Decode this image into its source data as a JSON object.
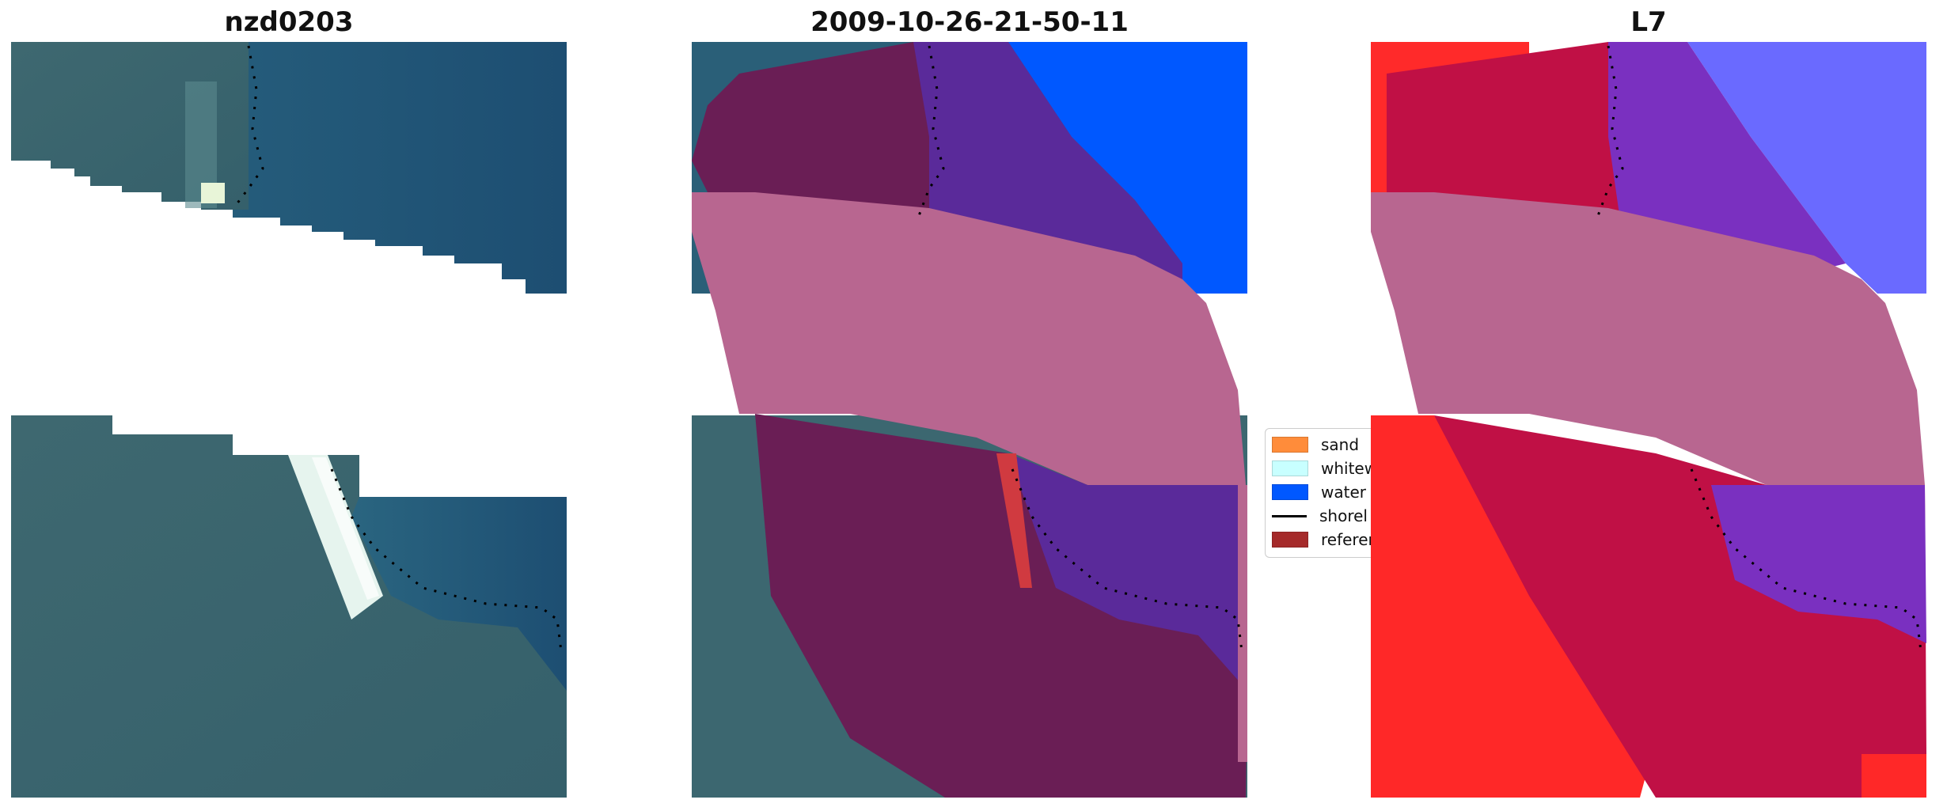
{
  "titles": {
    "left": "nzd0203",
    "center": "2009-10-26-21-50-11",
    "right": "L7"
  },
  "legend": {
    "items": [
      {
        "label": "sand",
        "color": "#ff8c3a"
      },
      {
        "label": "whitew",
        "color": "#c8ffff"
      },
      {
        "label": "water",
        "color": "#0058ff"
      },
      {
        "label": "shorel",
        "type": "line",
        "color": "#000000"
      },
      {
        "label": "referen",
        "color": "#a52a2a"
      }
    ]
  },
  "colors": {
    "ocean": "#1f5a7a",
    "land": "#3d6670",
    "surf": "#d9efe8",
    "water_class": "#0058ff",
    "purple_overlay": "#5a2a9a",
    "pink_mask": "#b86690",
    "maroon": "#6a1e55",
    "red": "#ff2020",
    "crimson": "#c01045",
    "light_blue": "#6a6aff"
  }
}
